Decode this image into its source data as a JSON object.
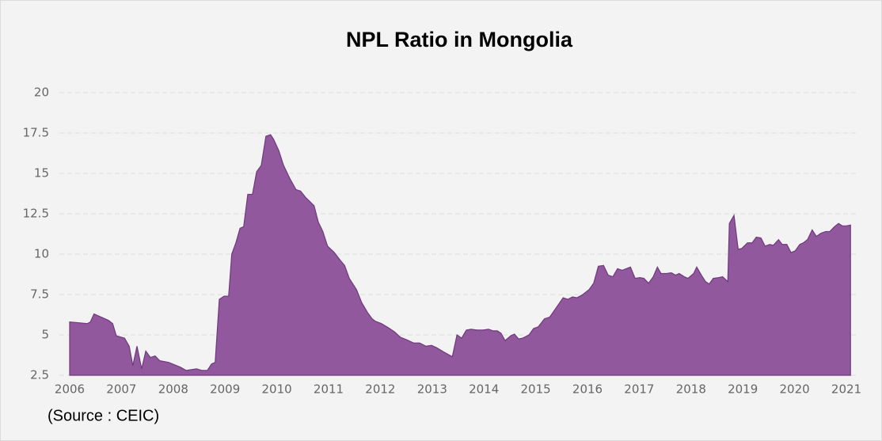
{
  "chart_data": {
    "type": "area",
    "title": "NPL Ratio in Mongolia",
    "source": "(Source : CEIC)",
    "color": "#8b4f98",
    "x": [
      2006.0,
      2006.18,
      2006.34,
      2006.4,
      2006.47,
      2006.61,
      2006.75,
      2006.83,
      2006.9,
      2007.06,
      2007.15,
      2007.22,
      2007.3,
      2007.39,
      2007.47,
      2007.56,
      2007.65,
      2007.74,
      2007.91,
      2008.14,
      2008.25,
      2008.45,
      2008.55,
      2008.66,
      2008.74,
      2008.81,
      2008.89,
      2008.98,
      2009.07,
      2009.13,
      2009.21,
      2009.29,
      2009.36,
      2009.44,
      2009.53,
      2009.61,
      2009.7,
      2009.79,
      2009.88,
      2009.94,
      2010.04,
      2010.13,
      2010.25,
      2010.37,
      2010.46,
      2010.56,
      2010.72,
      2010.8,
      2010.89,
      2010.98,
      2011.11,
      2011.23,
      2011.31,
      2011.4,
      2011.54,
      2011.64,
      2011.75,
      2011.84,
      2011.9,
      2012.02,
      2012.15,
      2012.27,
      2012.39,
      2012.51,
      2012.64,
      2012.76,
      2012.88,
      2012.99,
      2013.09,
      2013.22,
      2013.39,
      2013.48,
      2013.57,
      2013.66,
      2013.75,
      2013.87,
      2013.98,
      2014.09,
      2014.18,
      2014.26,
      2014.33,
      2014.41,
      2014.52,
      2014.59,
      2014.67,
      2014.75,
      2014.87,
      2014.96,
      2015.05,
      2015.17,
      2015.27,
      2015.4,
      2015.53,
      2015.62,
      2015.71,
      2015.8,
      2015.91,
      2016.03,
      2016.12,
      2016.21,
      2016.31,
      2016.4,
      2016.49,
      2016.58,
      2016.67,
      2016.83,
      2016.92,
      2017.01,
      2017.09,
      2017.18,
      2017.27,
      2017.35,
      2017.42,
      2017.53,
      2017.62,
      2017.7,
      2017.77,
      2017.87,
      2017.94,
      2018.05,
      2018.11,
      2018.2,
      2018.28,
      2018.35,
      2018.43,
      2018.54,
      2018.61,
      2018.71,
      2018.74,
      2018.83,
      2018.91,
      2018.98,
      2019.09,
      2019.18,
      2019.26,
      2019.35,
      2019.43,
      2019.52,
      2019.59,
      2019.69,
      2019.76,
      2019.85,
      2019.93,
      2020.01,
      2020.1,
      2020.17,
      2020.25,
      2020.34,
      2020.42,
      2020.51,
      2020.6,
      2020.68,
      2020.77,
      2020.85,
      2020.92,
      2021.0,
      2021.08
    ],
    "values": [
      5.8,
      5.75,
      5.7,
      5.8,
      6.3,
      6.1,
      5.9,
      5.7,
      4.95,
      4.8,
      4.3,
      3.1,
      4.3,
      2.9,
      4.0,
      3.6,
      3.7,
      3.4,
      3.3,
      3.0,
      2.8,
      2.9,
      2.8,
      2.8,
      3.2,
      3.3,
      7.2,
      7.4,
      7.4,
      10.0,
      10.7,
      11.6,
      11.7,
      13.7,
      13.7,
      15.1,
      15.5,
      17.3,
      17.4,
      17.1,
      16.4,
      15.5,
      14.7,
      14.0,
      13.9,
      13.5,
      13.0,
      12.0,
      11.4,
      10.5,
      10.1,
      9.6,
      9.3,
      8.5,
      7.8,
      7.0,
      6.4,
      6.0,
      5.85,
      5.7,
      5.45,
      5.2,
      4.85,
      4.7,
      4.5,
      4.5,
      4.3,
      4.35,
      4.2,
      3.95,
      3.65,
      5.0,
      4.8,
      5.3,
      5.35,
      5.3,
      5.3,
      5.35,
      5.25,
      5.25,
      5.1,
      4.65,
      4.95,
      5.05,
      4.75,
      4.8,
      5.0,
      5.4,
      5.5,
      6.0,
      6.1,
      6.7,
      7.3,
      7.2,
      7.35,
      7.3,
      7.5,
      7.8,
      8.2,
      9.25,
      9.3,
      8.7,
      8.6,
      9.1,
      9.0,
      9.2,
      8.5,
      8.55,
      8.5,
      8.2,
      8.6,
      9.2,
      8.8,
      8.8,
      8.85,
      8.7,
      8.8,
      8.6,
      8.5,
      8.8,
      9.2,
      8.7,
      8.3,
      8.15,
      8.5,
      8.55,
      8.6,
      8.3,
      11.9,
      12.4,
      10.3,
      10.35,
      10.7,
      10.7,
      11.05,
      11.0,
      10.5,
      10.6,
      10.55,
      10.9,
      10.6,
      10.6,
      10.1,
      10.2,
      10.6,
      10.7,
      10.9,
      11.5,
      11.1,
      11.3,
      11.4,
      11.4,
      11.7,
      11.9,
      11.75,
      11.75,
      11.8
    ],
    "xlim": [
      2006,
      2021.1
    ],
    "xticks": [
      2006,
      2007,
      2008,
      2009,
      2010,
      2011,
      2012,
      2013,
      2014,
      2015,
      2016,
      2017,
      2018,
      2019,
      2020,
      2021
    ],
    "ylim": [
      2.5,
      20
    ],
    "yticks": [
      2.5,
      5,
      7.5,
      10,
      12.5,
      15,
      17.5,
      20
    ],
    "grid": true
  }
}
